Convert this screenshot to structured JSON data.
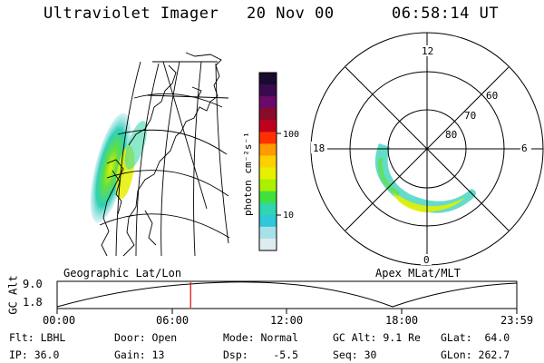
{
  "header": {
    "instrument": "Ultraviolet Imager",
    "date": "20 Nov 00",
    "time": "06:58:14 UT"
  },
  "colorbar": {
    "label": "photon cm⁻²s⁻¹",
    "ticks": [
      "100",
      "10"
    ],
    "colors": [
      "#1a0a2e",
      "#3a0a4e",
      "#6a0a6a",
      "#8a0a2a",
      "#c00020",
      "#ff3000",
      "#ff9a00",
      "#ffd000",
      "#e6f000",
      "#aaf000",
      "#40e040",
      "#30d6b0",
      "#30c8d8",
      "#a8e0e8",
      "#dcecf0"
    ]
  },
  "polar_plot": {
    "mlt_labels": {
      "top": "12",
      "bottom": "0",
      "left": "18",
      "right": "6"
    },
    "lat_labels": [
      "60",
      "70",
      "80"
    ]
  },
  "timeline": {
    "ylabel": "GC Alt",
    "ymax": "9.0",
    "ymin": "1.8",
    "left_title": "Geographic Lat/Lon",
    "right_title": "Apex MLat/MLT",
    "x_ticks": [
      "00:00",
      "06:00",
      "12:00",
      "18:00",
      "23:59"
    ],
    "marker_hours": 6.97
  },
  "info": {
    "flt": "Flt: LBHL",
    "ip": "IP: 36.0",
    "door": "Door: Open",
    "gain": "Gain: 13",
    "mode": "Mode: Normal",
    "dsp": "Dsp:    -5.5",
    "gcalt": "GC Alt: 9.1 Re",
    "seq": "Seq: 30",
    "glat": "GLat:  64.0",
    "glon": "GLon: 262.7"
  }
}
